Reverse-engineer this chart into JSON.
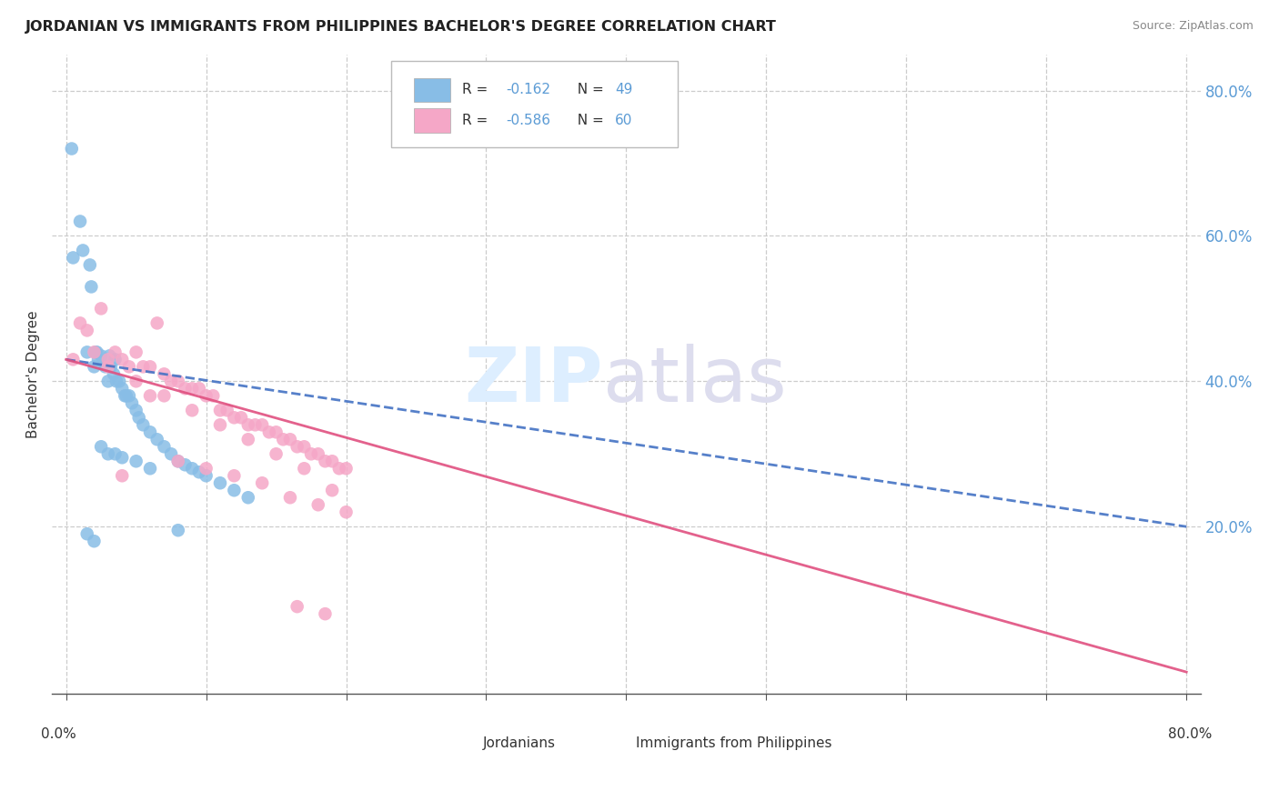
{
  "title": "JORDANIAN VS IMMIGRANTS FROM PHILIPPINES BACHELOR'S DEGREE CORRELATION CHART",
  "source": "Source: ZipAtlas.com",
  "ylabel": "Bachelor's Degree",
  "color_jordan": "#88bde6",
  "color_phil": "#f5a7c7",
  "line_jordan": "#4472c4",
  "line_phil": "#e05080",
  "r_jordan": -0.162,
  "n_jordan": 49,
  "r_phil": -0.586,
  "n_phil": 60,
  "jordanians_x": [
    0.4,
    0.5,
    1.0,
    1.2,
    1.5,
    1.7,
    1.8,
    2.0,
    2.1,
    2.2,
    2.3,
    2.5,
    2.8,
    3.0,
    3.1,
    3.2,
    3.4,
    3.5,
    3.6,
    3.8,
    4.0,
    4.2,
    4.3,
    4.5,
    4.7,
    5.0,
    5.2,
    5.5,
    6.0,
    6.5,
    7.0,
    7.5,
    8.0,
    8.5,
    9.0,
    9.5,
    10.0,
    11.0,
    12.0,
    13.0,
    1.5,
    2.0,
    2.5,
    3.0,
    3.5,
    4.0,
    5.0,
    6.0,
    8.0
  ],
  "jordanians_y": [
    72.0,
    57.0,
    62.0,
    58.0,
    44.0,
    56.0,
    53.0,
    42.0,
    44.0,
    44.0,
    43.0,
    43.5,
    42.0,
    40.0,
    43.5,
    42.0,
    41.0,
    43.0,
    40.0,
    40.0,
    39.0,
    38.0,
    38.0,
    38.0,
    37.0,
    36.0,
    35.0,
    34.0,
    33.0,
    32.0,
    31.0,
    30.0,
    29.0,
    28.5,
    28.0,
    27.5,
    27.0,
    26.0,
    25.0,
    24.0,
    19.0,
    18.0,
    31.0,
    30.0,
    30.0,
    29.5,
    29.0,
    28.0,
    19.5
  ],
  "philippines_x": [
    0.5,
    1.0,
    1.5,
    2.0,
    2.5,
    3.0,
    3.5,
    4.0,
    4.5,
    5.0,
    5.5,
    6.0,
    6.5,
    7.0,
    7.5,
    8.0,
    8.5,
    9.0,
    9.5,
    10.0,
    10.5,
    11.0,
    11.5,
    12.0,
    12.5,
    13.0,
    13.5,
    14.0,
    14.5,
    15.0,
    15.5,
    16.0,
    16.5,
    17.0,
    17.5,
    18.0,
    18.5,
    19.0,
    19.5,
    20.0,
    3.0,
    5.0,
    7.0,
    9.0,
    11.0,
    13.0,
    15.0,
    17.0,
    19.0,
    4.0,
    6.0,
    8.0,
    10.0,
    12.0,
    14.0,
    16.0,
    18.0,
    20.0,
    16.5,
    18.5
  ],
  "philippines_y": [
    43.0,
    48.0,
    47.0,
    44.0,
    50.0,
    43.0,
    44.0,
    43.0,
    42.0,
    44.0,
    42.0,
    42.0,
    48.0,
    41.0,
    40.0,
    40.0,
    39.0,
    39.0,
    39.0,
    38.0,
    38.0,
    36.0,
    36.0,
    35.0,
    35.0,
    34.0,
    34.0,
    34.0,
    33.0,
    33.0,
    32.0,
    32.0,
    31.0,
    31.0,
    30.0,
    30.0,
    29.0,
    29.0,
    28.0,
    28.0,
    42.0,
    40.0,
    38.0,
    36.0,
    34.0,
    32.0,
    30.0,
    28.0,
    25.0,
    27.0,
    38.0,
    29.0,
    28.0,
    27.0,
    26.0,
    24.0,
    23.0,
    22.0,
    9.0,
    8.0
  ],
  "xlim": [
    0,
    80
  ],
  "ylim": [
    0,
    85
  ],
  "yticks": [
    20,
    40,
    60,
    80
  ],
  "xtick_vals": [
    0,
    10,
    20,
    30,
    40,
    50,
    60,
    70,
    80
  ]
}
